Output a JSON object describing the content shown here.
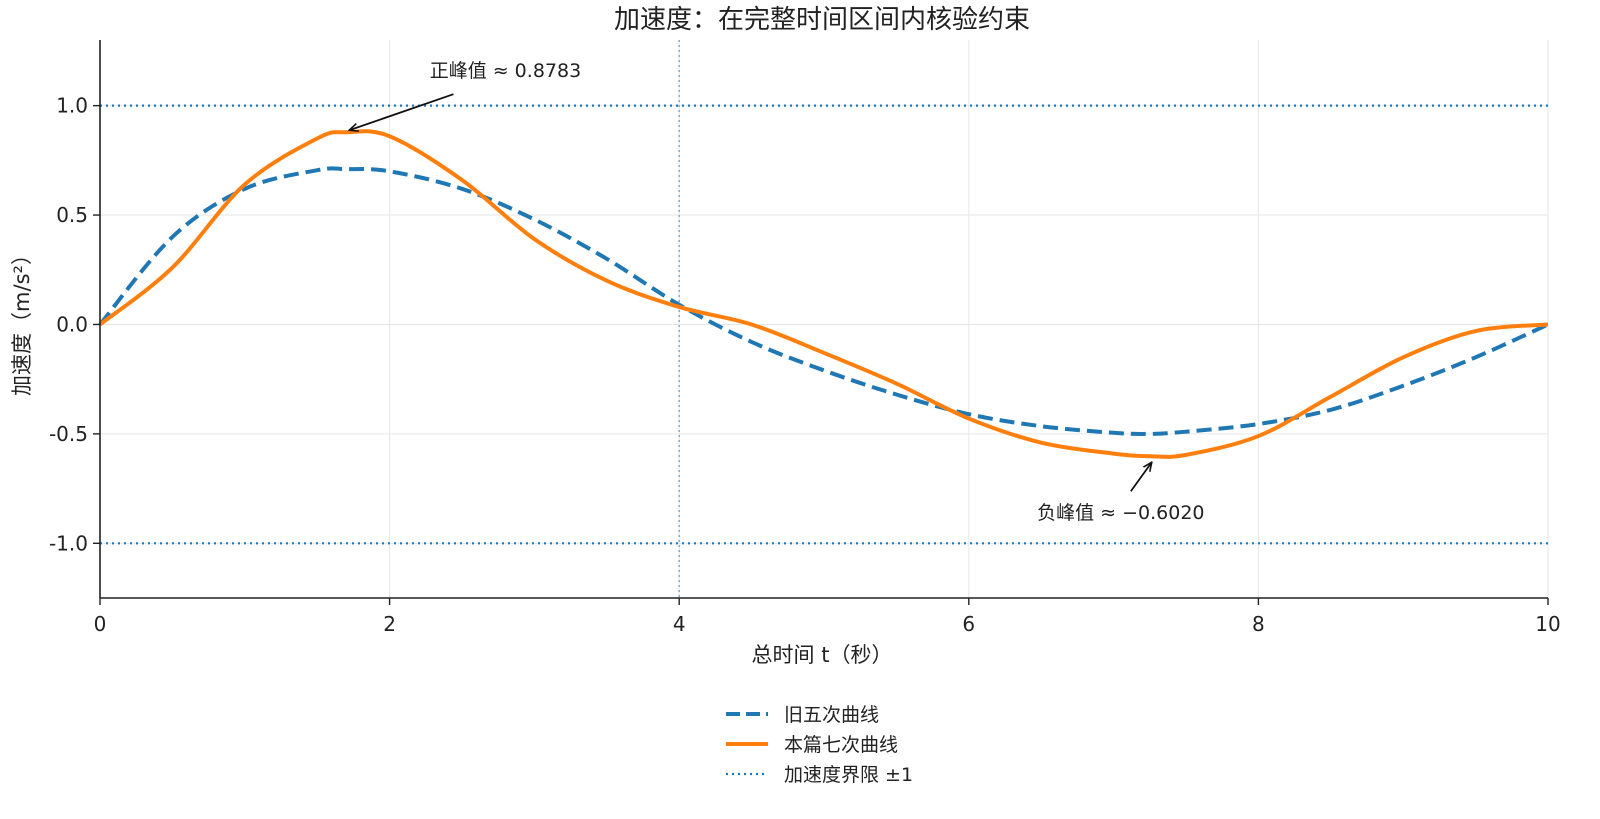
{
  "chart_data": {
    "type": "line",
    "title": "加速度：在完整时间区间内核验约束",
    "xlabel": "总时间 t（秒）",
    "ylabel": "加速度（m/s²）",
    "xlim": [
      0,
      10
    ],
    "ylim": [
      -1.25,
      1.3
    ],
    "x_ticks": [
      0,
      2,
      4,
      6,
      8,
      10
    ],
    "x_tick_labels": [
      "0",
      "2",
      "4",
      "6",
      "8",
      "10"
    ],
    "y_ticks": [
      1.0,
      0.5,
      0.0,
      -0.5,
      -1.0
    ],
    "y_tick_labels": [
      "1.0",
      "0.5",
      "0.0",
      "-0.5",
      "-1.0"
    ],
    "grid": true,
    "legend_position": "bottom-center",
    "x": [
      0,
      0.5,
      1.0,
      1.5,
      1.7,
      2.0,
      2.5,
      3.0,
      3.5,
      4.0,
      4.5,
      5.0,
      5.5,
      6.0,
      6.5,
      7.0,
      7.25,
      7.5,
      8.0,
      8.5,
      9.0,
      9.5,
      10.0
    ],
    "series": [
      {
        "name": "旧五次曲线",
        "style": "dashed",
        "color": "#1f77b4",
        "values": [
          0,
          0.4,
          0.62,
          0.705,
          0.71,
          0.7,
          0.62,
          0.48,
          0.3,
          0.09,
          -0.08,
          -0.21,
          -0.32,
          -0.41,
          -0.465,
          -0.495,
          -0.5,
          -0.49,
          -0.455,
          -0.39,
          -0.28,
          -0.15,
          0
        ]
      },
      {
        "name": "本篇七次曲线",
        "style": "solid",
        "color": "#ff7f0e",
        "values": [
          0,
          0.26,
          0.64,
          0.85,
          0.8783,
          0.86,
          0.66,
          0.39,
          0.2,
          0.08,
          0,
          -0.13,
          -0.27,
          -0.43,
          -0.54,
          -0.59,
          -0.602,
          -0.596,
          -0.51,
          -0.33,
          -0.15,
          -0.03,
          0
        ]
      },
      {
        "name": "加速度界限 ±1",
        "style": "dotted",
        "color": "#1f77b4",
        "lines": [
          1.0,
          -1.0
        ]
      }
    ],
    "vertical_reference_line": {
      "x": 4,
      "style": "dotted",
      "color": "#1f77b4"
    },
    "annotations": [
      {
        "text": "正峰值 ≈ 0.8783",
        "x": 1.7,
        "y": 0.8783,
        "text_x": 2.8,
        "text_y": 1.13
      },
      {
        "text": "负峰值 ≈ −0.6020",
        "x": 7.25,
        "y": -0.602,
        "text_x": 7.05,
        "text_y": -0.89
      }
    ]
  }
}
